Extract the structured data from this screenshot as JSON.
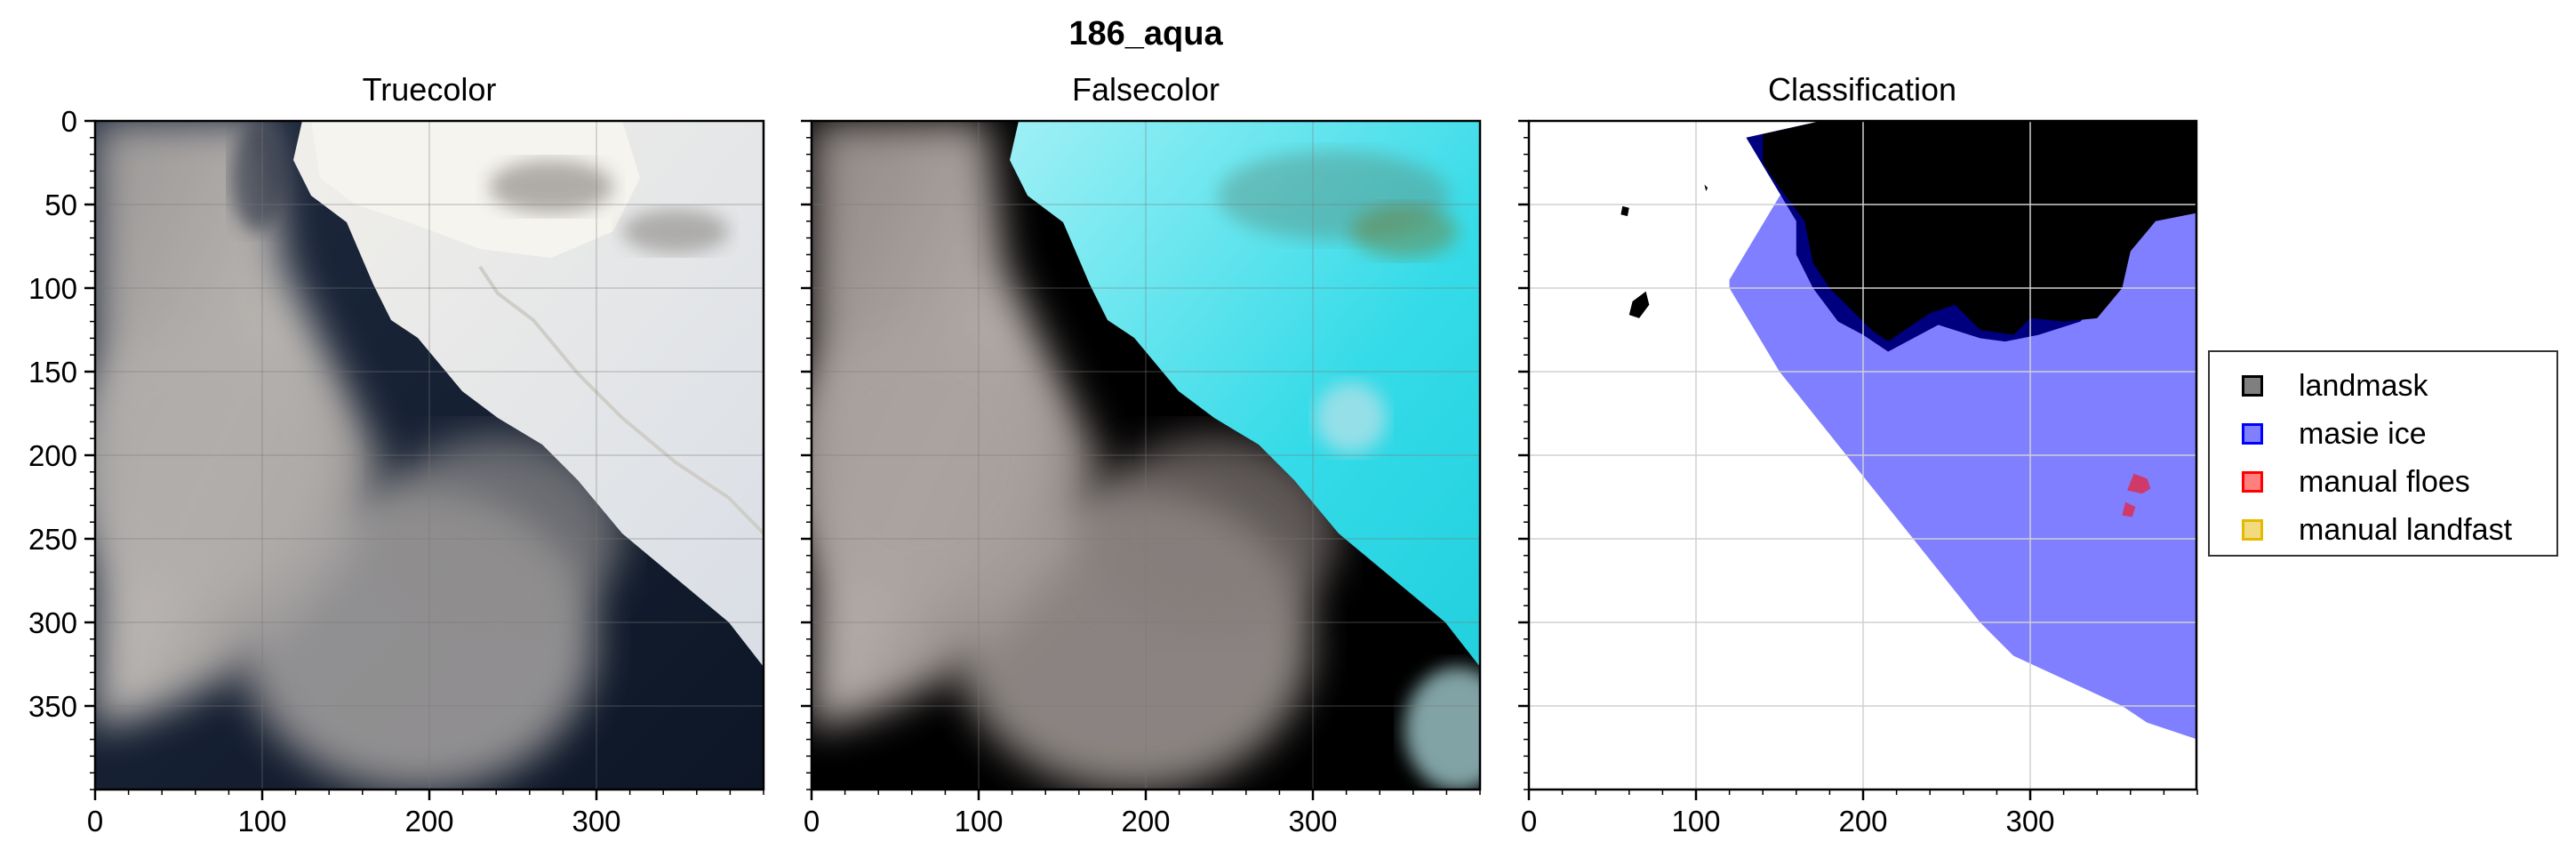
{
  "figure": {
    "suptitle": "186_aqua"
  },
  "chart_data": [
    {
      "type": "image",
      "title": "Truecolor",
      "xlim": [
        0,
        400
      ],
      "ylim": [
        400,
        0
      ],
      "xticks": [
        0,
        100,
        200,
        300
      ],
      "yticks": [
        0,
        50,
        100,
        150,
        200,
        250,
        300,
        350
      ],
      "grid": true
    },
    {
      "type": "image",
      "title": "Falsecolor",
      "xlim": [
        0,
        400
      ],
      "ylim": [
        400,
        0
      ],
      "xticks": [
        0,
        100,
        200,
        300
      ],
      "yticks": [
        0,
        50,
        100,
        150,
        200,
        250,
        300,
        350
      ],
      "grid": true
    },
    {
      "type": "image",
      "title": "Classification",
      "xlim": [
        0,
        400
      ],
      "ylim": [
        400,
        0
      ],
      "xticks": [
        0,
        100,
        200,
        300
      ],
      "yticks": [
        0,
        50,
        100,
        150,
        200,
        250,
        300,
        350
      ],
      "grid": true,
      "legend_position": "right",
      "legend": [
        {
          "label": "landmask",
          "color": "#000000"
        },
        {
          "label": "masie ice",
          "color": "#0000ff"
        },
        {
          "label": "manual floes",
          "color": "#ff0000"
        },
        {
          "label": "manual landfast",
          "color": "#e6b800"
        }
      ],
      "regions": {
        "masie_ice": [
          [
            188,
            97
          ],
          [
            340,
            375
          ],
          [
            575,
            532
          ],
          [
            617,
            565
          ],
          [
            660,
            560
          ],
          [
            715,
            535
          ],
          [
            855,
            512
          ],
          [
            1035,
            445
          ],
          [
            1200,
            400
          ],
          [
            1280,
            335
          ],
          [
            1305,
            300
          ],
          [
            1320,
            245
          ],
          [
            1320,
            165
          ],
          [
            1305,
            145
          ],
          [
            1220,
            153
          ],
          [
            1140,
            130
          ],
          [
            1060,
            115
          ],
          [
            1005,
            100
          ],
          [
            950,
            90
          ],
          [
            900,
            80
          ],
          [
            860,
            70
          ],
          [
            810,
            60
          ],
          [
            760,
            55
          ],
          [
            710,
            48
          ],
          [
            650,
            45
          ],
          [
            600,
            43
          ],
          [
            550,
            43
          ],
          [
            500,
            45
          ],
          [
            430,
            47
          ],
          [
            370,
            50
          ],
          [
            300,
            53
          ],
          [
            250,
            60
          ],
          [
            210,
            75
          ],
          [
            180,
            88
          ]
        ],
        "landmask": [
          [
            255,
            55
          ],
          [
            395,
            55
          ],
          [
            395,
            175
          ],
          [
            370,
            195
          ],
          [
            340,
            175
          ],
          [
            310,
            175
          ],
          [
            280,
            195
          ],
          [
            250,
            215
          ],
          [
            230,
            228
          ],
          [
            210,
            210
          ],
          [
            195,
            185
          ],
          [
            180,
            175
          ],
          [
            160,
            160
          ],
          [
            150,
            135
          ],
          [
            165,
            105
          ],
          [
            190,
            95
          ],
          [
            215,
            90
          ],
          [
            225,
            70
          ]
        ],
        "floes": [
          [
            [
              362,
              211
            ],
            [
              370,
              214
            ],
            [
              372,
              220
            ],
            [
              367,
              223
            ],
            [
              358,
              221
            ]
          ],
          [
            [
              357,
              228
            ],
            [
              363,
              231
            ],
            [
              361,
              237
            ],
            [
              355,
              236
            ]
          ]
        ]
      }
    }
  ]
}
